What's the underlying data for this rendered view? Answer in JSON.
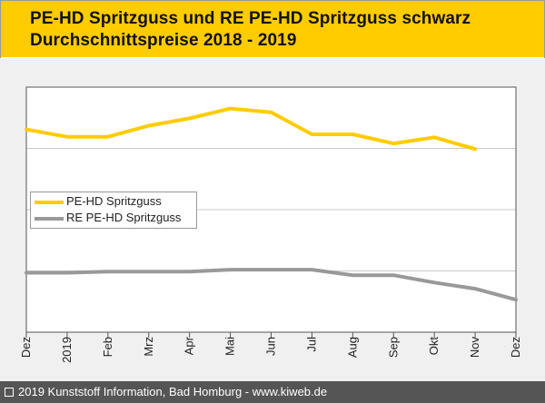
{
  "header": {
    "title_line1": "PE-HD Spritzguss und RE PE-HD Spritzguss schwarz",
    "title_line2": "Durchschnittspreise 2018 - 2019"
  },
  "footer": {
    "text": "2019 Kunststoff Information, Bad Homburg - www.kiweb.de"
  },
  "colors": {
    "header_bg": "#ffcc00",
    "series1": "#ffcc00",
    "series2": "#999999",
    "plot_bg": "#f0f0f0",
    "footer_bg": "#555555"
  },
  "chart_data": {
    "type": "line",
    "title": "PE-HD Spritzguss und RE PE-HD Spritzguss schwarz Durchschnittspreise 2018 - 2019",
    "categories": [
      "Dez",
      "2019",
      "Feb",
      "Mrz",
      "Apr",
      "Mai",
      "Jun",
      "Jul",
      "Aug",
      "Sep",
      "Okt",
      "Nov",
      "Dez"
    ],
    "series": [
      {
        "name": "PE-HD Spritzguss",
        "values": [
          3.31,
          3.19,
          3.19,
          3.37,
          3.49,
          3.65,
          3.59,
          3.23,
          3.23,
          3.08,
          3.18,
          2.99,
          null
        ]
      },
      {
        "name": "RE PE-HD Spritzguss",
        "values": [
          0.97,
          0.97,
          0.99,
          0.99,
          0.99,
          1.02,
          1.02,
          1.02,
          0.93,
          0.93,
          0.81,
          0.71,
          0.53
        ]
      }
    ],
    "ylim": [
      0,
      4
    ],
    "yticks": [
      1,
      2,
      3
    ],
    "grid": true,
    "legend": "middle-left",
    "xlabel": "",
    "ylabel": ""
  }
}
